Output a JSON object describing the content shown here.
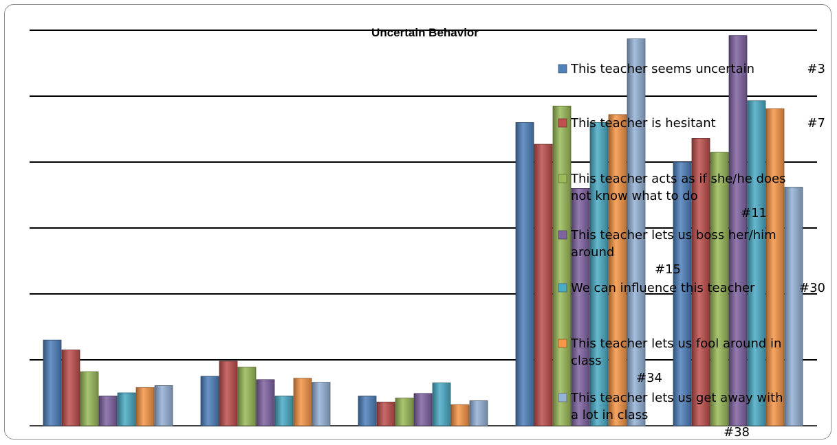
{
  "chart_data": {
    "type": "bar",
    "title": "Uncertain Behavior",
    "xlabel": "",
    "ylabel": "",
    "categories": [
      "",
      "",
      "",
      "",
      ""
    ],
    "ylim": [
      0,
      6
    ],
    "grid": true,
    "legend_position": "right, overlapping plot",
    "series": [
      {
        "name": "This teacher seems uncertain #3",
        "legend_lines": [
          "This teacher seems uncertain",
          "#3"
        ],
        "color": "#4f81bd",
        "values": [
          1.3,
          0.75,
          0.45,
          4.6,
          4.0
        ]
      },
      {
        "name": "This teacher is hesitant #7",
        "legend_lines": [
          "This teacher is hesitant",
          "#7"
        ],
        "color": "#c0504d",
        "values": [
          1.15,
          0.98,
          0.36,
          4.27,
          4.36
        ]
      },
      {
        "name": "This teacher acts as if she/he does not know what to do #11",
        "legend_lines": [
          "This teacher acts as if she/he does",
          "not know what to do",
          "#11"
        ],
        "color": "#9bbb59",
        "values": [
          0.82,
          0.89,
          0.42,
          4.85,
          4.15
        ]
      },
      {
        "name": "This teacher lets us boss her/him around #15",
        "legend_lines": [
          "This teacher lets us boss her/him",
          "around",
          "#15"
        ],
        "color": "#8064a2",
        "values": [
          0.45,
          0.7,
          0.49,
          3.6,
          5.92
        ]
      },
      {
        "name": "We can influence this teacher #30",
        "legend_lines": [
          "We can influence this teacher",
          "#30"
        ],
        "color": "#4bacc6",
        "values": [
          0.5,
          0.45,
          0.65,
          4.6,
          4.93
        ]
      },
      {
        "name": "This teacher lets us fool around in class #34",
        "legend_lines": [
          "This teacher lets us fool around in",
          "class",
          "#34"
        ],
        "color": "#f79646",
        "values": [
          0.58,
          0.72,
          0.32,
          4.72,
          4.81
        ]
      },
      {
        "name": "This teacher lets us get away with a lot in class #38",
        "legend_lines": [
          "This teacher lets us get away with",
          "a lot in class",
          "#38"
        ],
        "color": "#95b3d7",
        "values": [
          0.61,
          0.66,
          0.38,
          5.87,
          3.62
        ]
      }
    ]
  }
}
